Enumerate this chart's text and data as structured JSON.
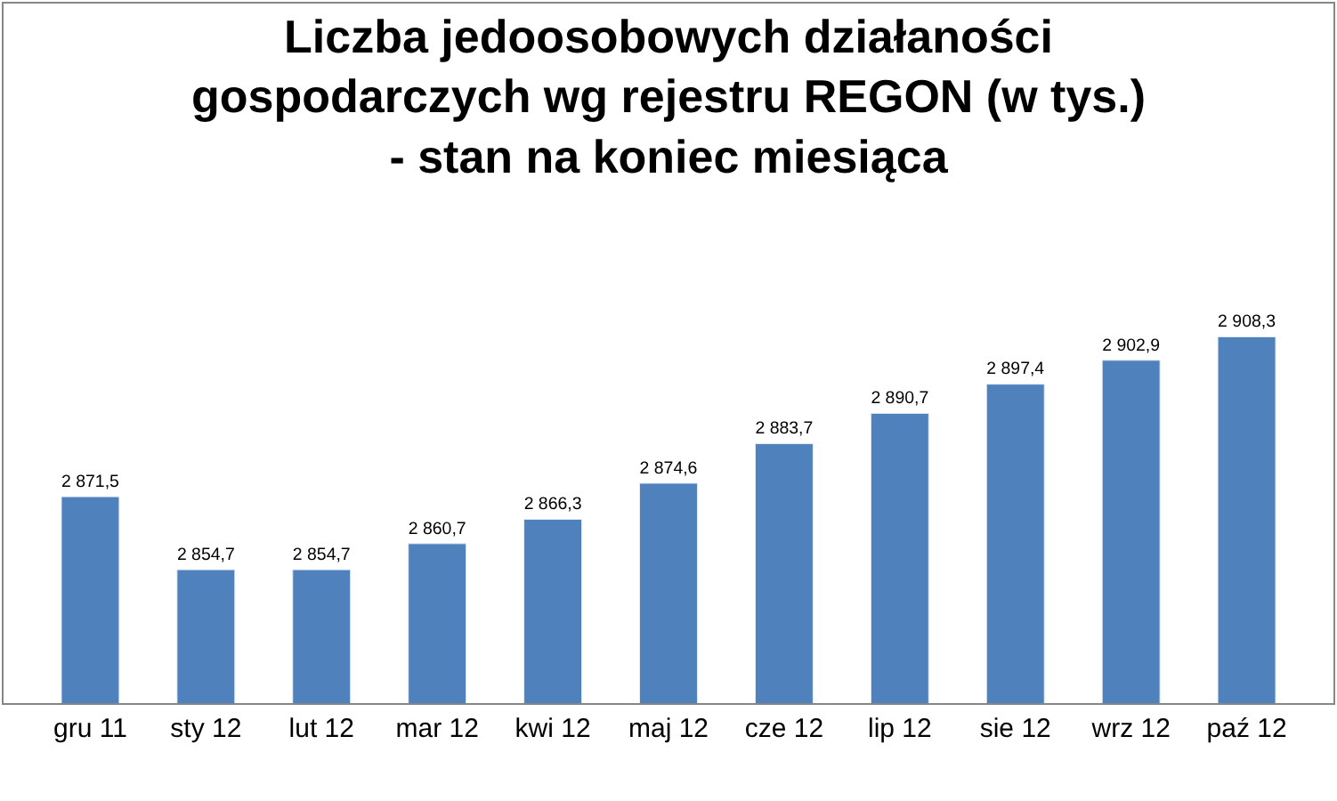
{
  "chart_data": {
    "type": "bar",
    "title": "Liczba jedoosobowych działaności\ngospodarczych wg rejestru REGON (w tys.)\n- stan na koniec miesiąca",
    "categories": [
      "gru 11",
      "sty 12",
      "lut 12",
      "mar 12",
      "kwi 12",
      "maj 12",
      "cze 12",
      "lip 12",
      "sie 12",
      "wrz 12",
      "paź 12"
    ],
    "values": [
      2871.5,
      2854.7,
      2854.7,
      2860.7,
      2866.3,
      2874.6,
      2883.7,
      2890.7,
      2897.4,
      2902.9,
      2908.3
    ],
    "value_labels": [
      "2 871,5",
      "2 854,7",
      "2 854,7",
      "2 860,7",
      "2 866,3",
      "2 874,6",
      "2 883,7",
      "2 890,7",
      "2 897,4",
      "2 902,9",
      "2 908,3"
    ],
    "color": "#4f81bd",
    "ylim": [
      2824,
      2985
    ],
    "tick_labels": "x",
    "legend": false
  }
}
